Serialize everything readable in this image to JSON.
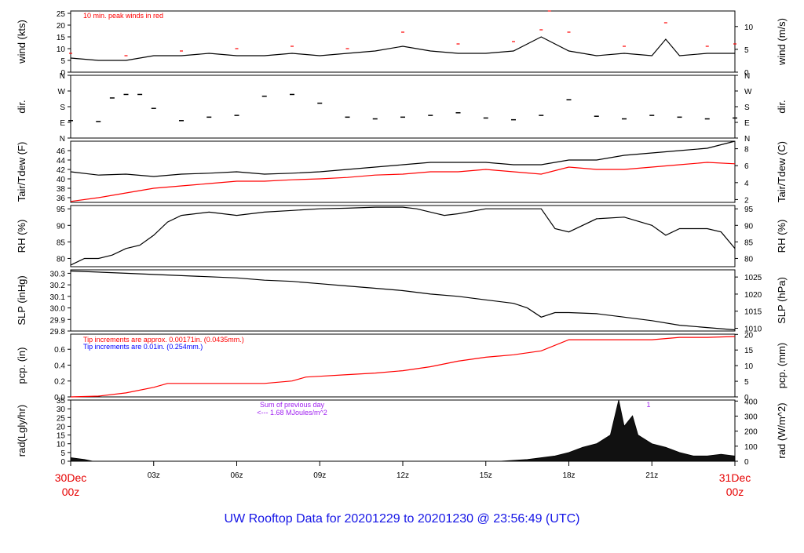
{
  "title": "UW Rooftop Data for 20201229  to  20201230 @ 23:56:49  (UTC)",
  "colors": {
    "title": "#1414e6",
    "date_labels": "#e60000",
    "trace": "#000000",
    "peak": "#ff0000",
    "dew": "#ff0000",
    "pcp": "#ff0000",
    "annot_blue": "#0000ff",
    "annot_purple": "#a020f0"
  },
  "x_axis": {
    "range_hours": [
      0,
      24
    ],
    "ticks": [
      {
        "h": 3,
        "label": "03z"
      },
      {
        "h": 6,
        "label": "06z"
      },
      {
        "h": 9,
        "label": "09z"
      },
      {
        "h": 12,
        "label": "12z"
      },
      {
        "h": 15,
        "label": "15z"
      },
      {
        "h": 18,
        "label": "18z"
      },
      {
        "h": 21,
        "label": "21z"
      }
    ],
    "start": {
      "date": "30Dec",
      "time": "00z"
    },
    "end": {
      "date": "31Dec",
      "time": "00z"
    }
  },
  "chart_data": [
    {
      "id": "wind",
      "type": "line",
      "ylabel": "wind (kts)",
      "ylabel_right": "wind (m/s)",
      "ylim": [
        0,
        26
      ],
      "yticks": [
        "0",
        "5",
        "10",
        "15",
        "20",
        "25"
      ],
      "right_ylim": [
        0,
        13.4
      ],
      "right_yticks": [
        "0",
        "5",
        "10"
      ],
      "annotation": "10 min. peak winds in red",
      "series": [
        {
          "x": [
            0,
            1,
            2,
            3,
            4,
            5,
            6,
            7,
            8,
            9,
            10,
            11,
            12,
            13,
            14,
            15,
            16,
            17,
            18,
            19,
            20,
            21,
            21.5,
            22,
            23,
            24
          ],
          "y": [
            6,
            5,
            5,
            7,
            7,
            8,
            7,
            7,
            8,
            7,
            8,
            9,
            11,
            9,
            8,
            8,
            9,
            15,
            9,
            7,
            8,
            7,
            14,
            7,
            8,
            8
          ]
        }
      ],
      "peaks": {
        "x": [
          0,
          2,
          4,
          6,
          8,
          10,
          12,
          14,
          16,
          17,
          17.3,
          18,
          20,
          21.5,
          23,
          24
        ],
        "y": [
          8,
          7,
          9,
          10,
          11,
          10,
          17,
          12,
          13,
          18,
          26,
          17,
          11,
          21,
          11,
          12
        ]
      }
    },
    {
      "id": "dir",
      "type": "scatter",
      "ylabel": "dir.",
      "ylabel_right": "dir.",
      "yticks": [
        "N",
        "E",
        "S",
        "W",
        "N"
      ],
      "ylim": [
        0,
        360
      ],
      "series": [
        {
          "x": [
            0,
            1,
            1.5,
            2,
            2.5,
            3,
            4,
            5,
            6,
            7,
            8,
            9,
            10,
            11,
            12,
            13,
            14,
            15,
            16,
            17,
            18,
            19,
            20,
            21,
            22,
            23,
            24
          ],
          "y": [
            100,
            95,
            230,
            250,
            250,
            170,
            100,
            120,
            130,
            240,
            250,
            200,
            120,
            110,
            120,
            130,
            145,
            115,
            105,
            130,
            220,
            125,
            110,
            130,
            120,
            110,
            115
          ]
        }
      ]
    },
    {
      "id": "temp",
      "type": "line",
      "ylabel": "Tair/Tdew (F)",
      "ylabel_right": "Tair/Tdew (C)",
      "ylim": [
        35,
        48
      ],
      "yticks": [
        "36",
        "38",
        "40",
        "42",
        "44",
        "46"
      ],
      "right_ylim": [
        1.67,
        8.89
      ],
      "right_yticks": [
        "2",
        "4",
        "6",
        "8"
      ],
      "series": [
        {
          "name": "Tair",
          "x": [
            0,
            1,
            2,
            3,
            4,
            5,
            6,
            7,
            8,
            9,
            10,
            11,
            12,
            13,
            14,
            15,
            16,
            17,
            18,
            19,
            20,
            21,
            22,
            23,
            24
          ],
          "y": [
            41.5,
            40.8,
            41,
            40.5,
            41,
            41.2,
            41.5,
            41,
            41.2,
            41.5,
            42,
            42.5,
            43,
            43.5,
            43.5,
            43.5,
            43,
            43,
            44,
            44,
            45,
            45.5,
            46,
            46.5,
            48
          ]
        },
        {
          "name": "Tdew",
          "x": [
            0,
            1,
            2,
            3,
            4,
            5,
            6,
            7,
            8,
            9,
            10,
            11,
            12,
            13,
            14,
            15,
            16,
            17,
            18,
            19,
            20,
            21,
            22,
            23,
            24
          ],
          "y": [
            35.2,
            36,
            37,
            38,
            38.5,
            39,
            39.5,
            39.5,
            39.8,
            40,
            40.3,
            40.8,
            41,
            41.5,
            41.5,
            42,
            41.5,
            41,
            42.5,
            42,
            42,
            42.5,
            43,
            43.5,
            43.2
          ]
        }
      ]
    },
    {
      "id": "rh",
      "type": "line",
      "ylabel": "RH (%)",
      "ylabel_right": "RH (%)",
      "ylim": [
        77.5,
        96
      ],
      "yticks": [
        "80",
        "85",
        "90",
        "95"
      ],
      "right_yticks": [
        "80",
        "85",
        "90",
        "95"
      ],
      "series": [
        {
          "x": [
            0,
            0.5,
            1,
            1.5,
            2,
            2.5,
            3,
            3.5,
            4,
            5,
            6,
            7,
            8,
            9,
            10,
            11,
            12,
            12.5,
            13,
            13.5,
            14,
            15,
            16,
            16.5,
            17,
            17.5,
            18,
            19,
            20,
            21,
            21.5,
            22,
            23,
            23.5,
            24
          ],
          "y": [
            78,
            80,
            80,
            81,
            83,
            84,
            87,
            91,
            93,
            94,
            93,
            94,
            94.5,
            95,
            95.2,
            95.5,
            95.5,
            95,
            94,
            93,
            93.5,
            95,
            95,
            95,
            95,
            89,
            88,
            92,
            92.5,
            90,
            87,
            89,
            89,
            88,
            83
          ]
        }
      ]
    },
    {
      "id": "slp",
      "type": "line",
      "ylabel": "SLP (inHg)",
      "ylabel_right": "SLP (hPa)",
      "ylim": [
        29.8,
        30.33
      ],
      "yticks": [
        "29.8",
        "29.9",
        "30.0",
        "30.1",
        "30.2",
        "30.3"
      ],
      "right_ylim": [
        1009.2,
        1027.1
      ],
      "right_yticks": [
        "1010",
        "1015",
        "1020",
        "1025"
      ],
      "series": [
        {
          "x": [
            0,
            1,
            2,
            3,
            4,
            5,
            6,
            7,
            8,
            9,
            10,
            11,
            12,
            13,
            14,
            15,
            16,
            16.5,
            17,
            17.5,
            18,
            19,
            20,
            21,
            22,
            23,
            24
          ],
          "y": [
            30.32,
            30.31,
            30.3,
            30.29,
            30.28,
            30.27,
            30.26,
            30.24,
            30.23,
            30.21,
            30.19,
            30.17,
            30.15,
            30.12,
            30.1,
            30.07,
            30.04,
            30.0,
            29.92,
            29.96,
            29.96,
            29.95,
            29.92,
            29.89,
            29.85,
            29.83,
            29.81
          ]
        }
      ]
    },
    {
      "id": "pcp",
      "type": "line",
      "ylabel": "pcp. (in)",
      "ylabel_right": "pcp. (mm)",
      "ylim": [
        0,
        0.79
      ],
      "yticks": [
        "0.0",
        "0.2",
        "0.4",
        "0.6"
      ],
      "right_ylim": [
        0,
        20.07
      ],
      "right_yticks": [
        "0",
        "5",
        "10",
        "15",
        "20"
      ],
      "annotation_red": "Tip increments are approx. 0.00171in. (0.0435mm.)",
      "annotation_blue": "Tip increments are 0.01in. (0.254mm.)",
      "series": [
        {
          "x": [
            0,
            1,
            2,
            3,
            3.5,
            4,
            5,
            6,
            7,
            8,
            8.5,
            9,
            10,
            11,
            12,
            13,
            14,
            15,
            16,
            17,
            18,
            19,
            20,
            21,
            22,
            23,
            24
          ],
          "y": [
            0,
            0.01,
            0.05,
            0.12,
            0.17,
            0.17,
            0.17,
            0.17,
            0.17,
            0.2,
            0.25,
            0.26,
            0.28,
            0.3,
            0.33,
            0.38,
            0.45,
            0.5,
            0.53,
            0.58,
            0.72,
            0.72,
            0.72,
            0.72,
            0.75,
            0.75,
            0.76
          ]
        }
      ]
    },
    {
      "id": "rad",
      "type": "area",
      "ylabel": "rad(Lgly/hr)",
      "ylabel_right": "rad (W/m^2)",
      "ylim": [
        0,
        35
      ],
      "yticks": [
        "0",
        "5",
        "10",
        "15",
        "20",
        "25",
        "30",
        "35"
      ],
      "right_ylim": [
        0,
        406.7
      ],
      "right_yticks": [
        "0",
        "100",
        "200",
        "300",
        "400"
      ],
      "annotation_sum": "Sum of previous day",
      "annotation_value": "<--- 1.68 MJoules/m^2",
      "annotation_marker": "1",
      "series": [
        {
          "x": [
            0,
            0.5,
            0.8,
            15.5,
            16.5,
            17.5,
            18,
            18.5,
            19,
            19.5,
            19.8,
            20,
            20.3,
            20.5,
            21,
            21.5,
            22,
            22.5,
            23,
            23.5,
            24
          ],
          "y": [
            2,
            1,
            0,
            0,
            1,
            3,
            5,
            8,
            10,
            15,
            35,
            20,
            26,
            15,
            10,
            8,
            5,
            3,
            3,
            4,
            3
          ]
        }
      ]
    }
  ]
}
